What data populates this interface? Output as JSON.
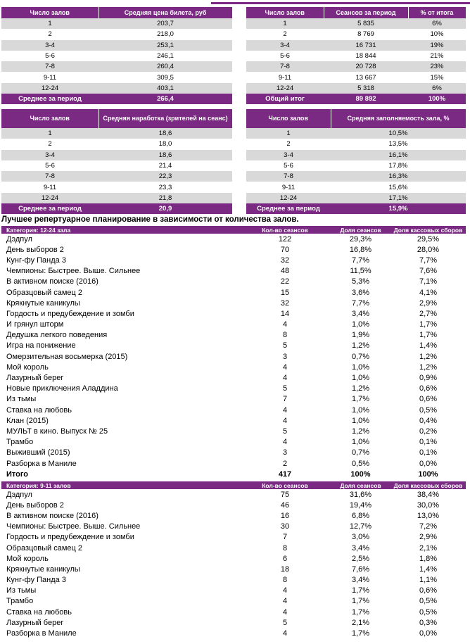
{
  "tables": [
    {
      "header": [
        "Число залов",
        "Средняя цена билета, руб"
      ],
      "rows": [
        [
          "1",
          "203,7"
        ],
        [
          "2",
          "218,0"
        ],
        [
          "3-4",
          "253,1"
        ],
        [
          "5-6",
          "246,1"
        ],
        [
          "7-8",
          "260,4"
        ],
        [
          "9-11",
          "309,5"
        ],
        [
          "12-24",
          "403,1"
        ]
      ],
      "footer": [
        "Среднее за период",
        "266,4"
      ]
    },
    {
      "header": [
        "Число залов",
        "Сеансов за период",
        "% от итога"
      ],
      "rows": [
        [
          "1",
          "5 835",
          "6%"
        ],
        [
          "2",
          "8 769",
          "10%"
        ],
        [
          "3-4",
          "16 731",
          "19%"
        ],
        [
          "5-6",
          "18 844",
          "21%"
        ],
        [
          "7-8",
          "20 728",
          "23%"
        ],
        [
          "9-11",
          "13 667",
          "15%"
        ],
        [
          "12-24",
          "5 318",
          "6%"
        ]
      ],
      "footer": [
        "Общий итог",
        "89 892",
        "100%"
      ]
    },
    {
      "header": [
        "Число залов",
        "Средняя наработка (зрителей на сеанс)"
      ],
      "rows": [
        [
          "1",
          "18,6"
        ],
        [
          "2",
          "18,0"
        ],
        [
          "3-4",
          "18,6"
        ],
        [
          "5-6",
          "21,4"
        ],
        [
          "7-8",
          "22,3"
        ],
        [
          "9-11",
          "23,3"
        ],
        [
          "12-24",
          "21,8"
        ]
      ],
      "footer": [
        "Среднее за период",
        "20,9"
      ]
    },
    {
      "header": [
        "Число залов",
        "Средняя заполняемость зала, %"
      ],
      "rows": [
        [
          "1",
          "10,5%"
        ],
        [
          "2",
          "13,5%"
        ],
        [
          "3-4",
          "16,1%"
        ],
        [
          "5-6",
          "17,8%"
        ],
        [
          "7-8",
          "16,3%"
        ],
        [
          "9-11",
          "15,6%"
        ],
        [
          "12-24",
          "17,1%"
        ]
      ],
      "footer": [
        "Среднее за период",
        "15,9%"
      ]
    },
    {
      "header": [
        "Категория: 12-24 зала",
        "Кол-во сеансов",
        "Доля сеансов",
        "Доля кассовых сборов"
      ],
      "rows": [
        [
          "Дэдпул",
          "122",
          "29,3%",
          "29,5%"
        ],
        [
          "День выборов 2",
          "70",
          "16,8%",
          "28,0%"
        ],
        [
          "Кунг-фу Панда 3",
          "32",
          "7,7%",
          "7,7%"
        ],
        [
          "Чемпионы: Быстрее. Выше. Сильнее",
          "48",
          "11,5%",
          "7,6%"
        ],
        [
          "В активном поиске (2016)",
          "22",
          "5,3%",
          "7,1%"
        ],
        [
          "Образцовый самец 2",
          "15",
          "3,6%",
          "4,1%"
        ],
        [
          "Крякнутые каникулы",
          "32",
          "7,7%",
          "2,9%"
        ],
        [
          "Гордость и предубеждение и зомби",
          "14",
          "3,4%",
          "2,7%"
        ],
        [
          "И грянул шторм",
          "4",
          "1,0%",
          "1,7%"
        ],
        [
          "Дедушка легкого поведения",
          "8",
          "1,9%",
          "1,7%"
        ],
        [
          "Игра на понижение",
          "5",
          "1,2%",
          "1,4%"
        ],
        [
          "Омерзительная восьмерка (2015)",
          "3",
          "0,7%",
          "1,2%"
        ],
        [
          "Мой король",
          "4",
          "1,0%",
          "1,2%"
        ],
        [
          "Лазурный берег",
          "4",
          "1,0%",
          "0,9%"
        ],
        [
          "Новые приключения Аладдина",
          "5",
          "1,2%",
          "0,6%"
        ],
        [
          "Из тьмы",
          "7",
          "1,7%",
          "0,6%"
        ],
        [
          "Ставка на любовь",
          "4",
          "1,0%",
          "0,5%"
        ],
        [
          "Клан (2015)",
          "4",
          "1,0%",
          "0,4%"
        ],
        [
          "МУЛЬТ в кино. Выпуск № 25",
          "5",
          "1,2%",
          "0,2%"
        ],
        [
          "Трамбо",
          "4",
          "1,0%",
          "0,1%"
        ],
        [
          "Выживший (2015)",
          "3",
          "0,7%",
          "0,1%"
        ],
        [
          "Разборка в Маниле",
          "2",
          "0,5%",
          "0,0%"
        ]
      ],
      "footer": [
        "Итого",
        "417",
        "100%",
        "100%"
      ]
    },
    {
      "header": [
        "Категория: 9-11 залов",
        "Кол-во сеансов",
        "Доля сеансов",
        "Доля кассовых сборов"
      ],
      "rows": [
        [
          "Дэдпул",
          "75",
          "31,6%",
          "38,4%"
        ],
        [
          "День выборов 2",
          "46",
          "19,4%",
          "30,0%"
        ],
        [
          "В активном поиске (2016)",
          "16",
          "6,8%",
          "13,0%"
        ],
        [
          "Чемпионы: Быстрее. Выше. Сильнее",
          "30",
          "12,7%",
          "7,2%"
        ],
        [
          "Гордость и предубеждение и зомби",
          "7",
          "3,0%",
          "2,9%"
        ],
        [
          "Образцовый самец 2",
          "8",
          "3,4%",
          "2,1%"
        ],
        [
          "Мой король",
          "6",
          "2,5%",
          "1,8%"
        ],
        [
          "Крякнутые каникулы",
          "18",
          "7,6%",
          "1,4%"
        ],
        [
          "Кунг-фу Панда 3",
          "8",
          "3,4%",
          "1,1%"
        ],
        [
          "Из тьмы",
          "4",
          "1,7%",
          "0,6%"
        ],
        [
          "Трамбо",
          "4",
          "1,7%",
          "0,5%"
        ],
        [
          "Ставка на любовь",
          "4",
          "1,7%",
          "0,5%"
        ],
        [
          "Лазурный берег",
          "5",
          "2,1%",
          "0,3%"
        ],
        [
          "Разборка в Маниле",
          "4",
          "1,7%",
          "0,0%"
        ]
      ]
    }
  ],
  "heading": "Лучшее репертуарное планирование в зависимости от количества залов."
}
